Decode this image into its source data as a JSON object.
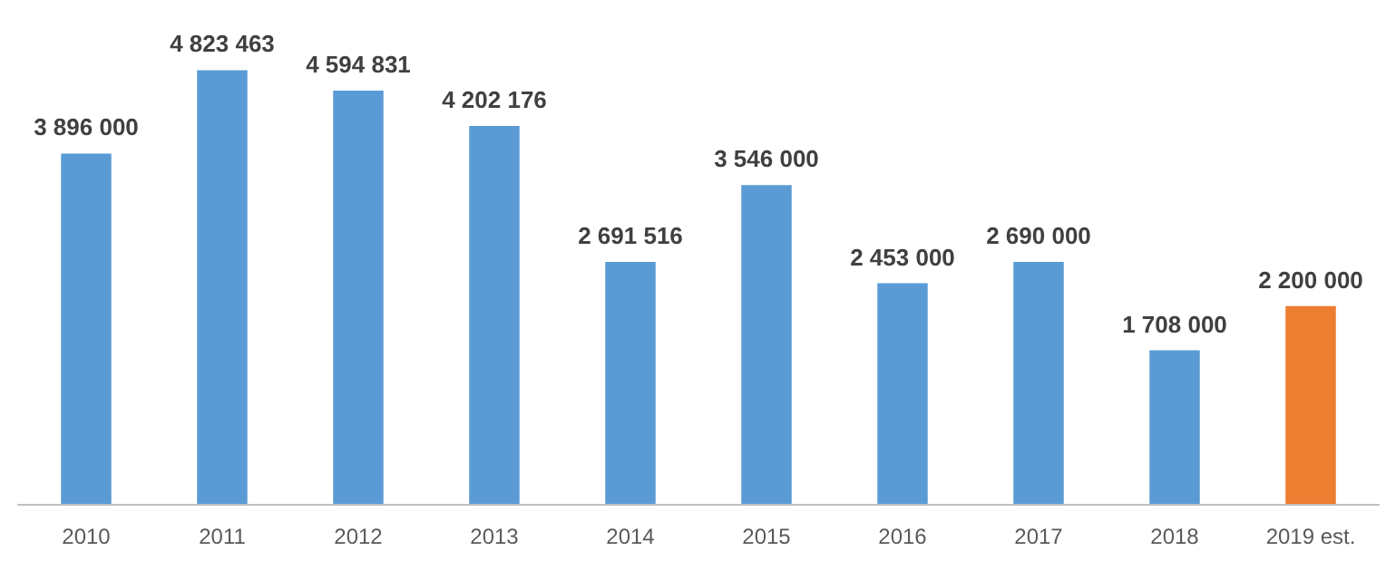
{
  "chart_data": {
    "type": "bar",
    "categories": [
      "2010",
      "2011",
      "2012",
      "2013",
      "2014",
      "2015",
      "2016",
      "2017",
      "2018",
      "2019 est."
    ],
    "values": [
      3896000,
      4823463,
      4594831,
      4202176,
      2691516,
      3546000,
      2453000,
      2690000,
      1708000,
      2200000
    ],
    "value_labels": [
      "3 896 000",
      "4 823 463",
      "4 594 831",
      "4 202 176",
      "2 691 516",
      "3 546 000",
      "2 453 000",
      "2 690 000",
      "1 708 000",
      "2 200 000"
    ],
    "colors": [
      "#5b9bd5",
      "#5b9bd5",
      "#5b9bd5",
      "#5b9bd5",
      "#5b9bd5",
      "#5b9bd5",
      "#5b9bd5",
      "#5b9bd5",
      "#5b9bd5",
      "#ed7d31"
    ],
    "grid": false
  }
}
